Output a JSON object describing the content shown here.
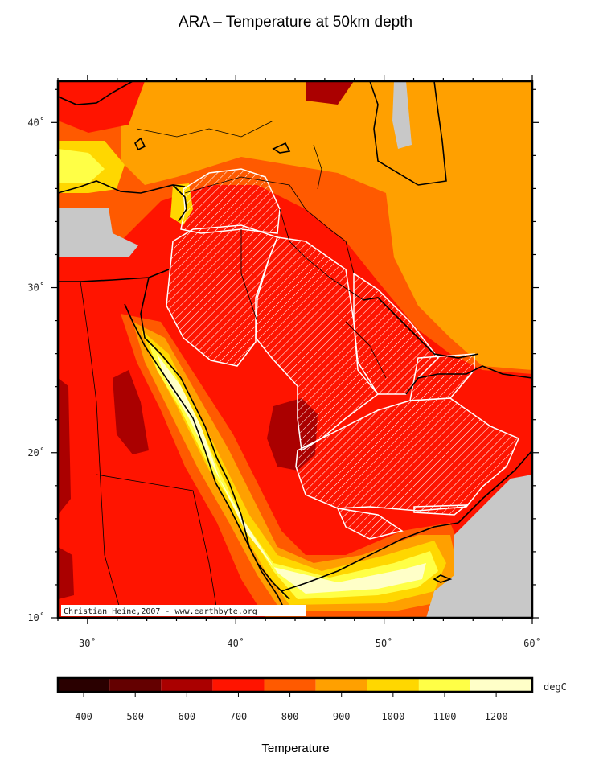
{
  "title": "ARA – Temperature at 50km depth",
  "map": {
    "lon_range": [
      28,
      60
    ],
    "lat_range": [
      10,
      42.5
    ],
    "lon_ticks": [
      {
        "value": 30,
        "label": "30˚"
      },
      {
        "value": 40,
        "label": "40˚"
      },
      {
        "value": 50,
        "label": "50˚"
      },
      {
        "value": 60,
        "label": "60˚"
      }
    ],
    "lat_ticks": [
      {
        "value": 10,
        "label": "10˚"
      },
      {
        "value": 20,
        "label": "20˚"
      },
      {
        "value": 30,
        "label": "30˚"
      },
      {
        "value": 40,
        "label": "40˚"
      }
    ],
    "credit": "Christian Heine,2007 - www.earthbyte.org",
    "nodata_color": "#c8c8c8"
  },
  "colorbar": {
    "unit": "degC",
    "title": "Temperature",
    "range": [
      350,
      1270
    ],
    "labels": [
      400,
      500,
      600,
      700,
      800,
      900,
      1000,
      1100,
      1200
    ],
    "colors": [
      "#2a0000",
      "#640000",
      "#aa0000",
      "#ff1400",
      "#ff5a00",
      "#ffa000",
      "#ffd700",
      "#ffff46",
      "#ffffc8"
    ]
  }
}
